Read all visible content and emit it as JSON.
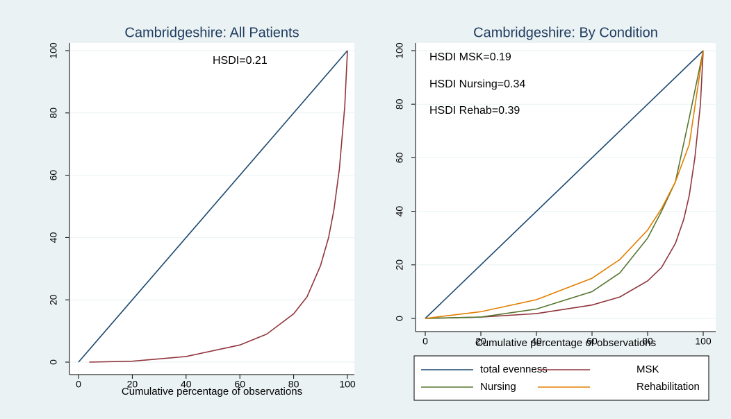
{
  "chart_data": [
    {
      "type": "line",
      "title": "Cambridgeshire: All Patients",
      "xlabel": "Cumulative percentage of observations",
      "annotations": [
        "HSDI=0.21"
      ],
      "xlim": [
        0,
        100
      ],
      "ylim": [
        0,
        100
      ],
      "xticks": [
        0,
        20,
        40,
        60,
        80,
        100
      ],
      "yticks": [
        0,
        20,
        40,
        60,
        80,
        100
      ],
      "grid": true,
      "series": [
        {
          "color": "#1a476f",
          "x": [
            0,
            100
          ],
          "values": [
            0,
            100
          ]
        },
        {
          "color": "#90353b",
          "x": [
            4,
            20,
            40,
            60,
            70,
            80,
            85,
            90,
            93,
            95,
            97,
            98,
            99,
            100
          ],
          "values": [
            0,
            0.3,
            1.8,
            5.5,
            9,
            15.5,
            21,
            31,
            40,
            49,
            62,
            72,
            82,
            100
          ]
        }
      ]
    },
    {
      "type": "line",
      "title": "Cambridgeshire: By Condition",
      "xlabel": "Cumulative percentage of observations",
      "annotations": [
        "HSDI MSK=0.19",
        "HSDI Nursing=0.34",
        "HSDI Rehab=0.39"
      ],
      "xlim": [
        0,
        100
      ],
      "ylim": [
        0,
        100
      ],
      "xticks": [
        0,
        20,
        40,
        60,
        80,
        100
      ],
      "yticks": [
        0,
        20,
        40,
        60,
        80,
        100
      ],
      "grid": true,
      "series": [
        {
          "name": "total evenness",
          "color": "#1a476f",
          "x": [
            0,
            100
          ],
          "values": [
            0,
            100
          ]
        },
        {
          "name": "MSK",
          "color": "#90353b",
          "x": [
            0,
            20,
            40,
            60,
            70,
            80,
            85,
            90,
            93,
            95,
            97,
            98,
            99,
            100
          ],
          "values": [
            0,
            0.5,
            1.8,
            5,
            8,
            14,
            19,
            28,
            37,
            46,
            60,
            70,
            80,
            100
          ]
        },
        {
          "name": "Nursing",
          "color": "#55752f",
          "x": [
            0,
            20,
            40,
            60,
            70,
            80,
            85,
            90,
            95,
            100
          ],
          "values": [
            0,
            0.5,
            3.5,
            10,
            17,
            30,
            40,
            51,
            75,
            100
          ]
        },
        {
          "name": "Rehabilitation",
          "color": "#e37e00",
          "x": [
            0,
            20,
            40,
            60,
            70,
            80,
            85,
            90,
            95,
            100
          ],
          "values": [
            0,
            2.5,
            7,
            15,
            22,
            33,
            41,
            51,
            65,
            100
          ]
        }
      ]
    }
  ]
}
